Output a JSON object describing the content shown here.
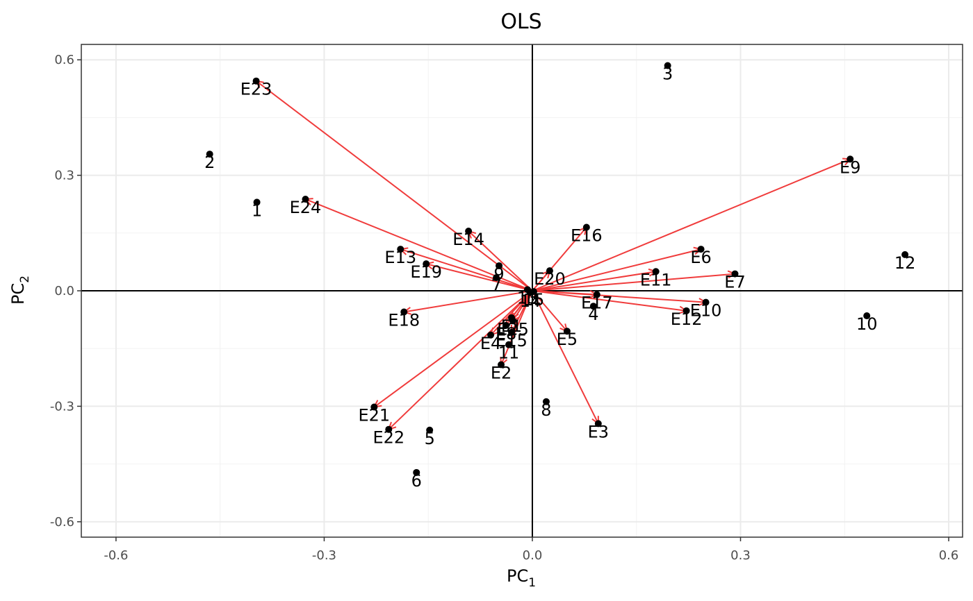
{
  "chart_data": {
    "type": "scatter",
    "title": "OLS",
    "xlabel": {
      "main": "PC",
      "sub": "1"
    },
    "ylabel": {
      "main": "PC",
      "sub": "2"
    },
    "xlim": [
      -0.65,
      0.62
    ],
    "ylim": [
      -0.64,
      0.64
    ],
    "xticks": [
      -0.6,
      -0.3,
      0.0,
      0.3,
      0.6
    ],
    "xtick_labels": [
      "-0.6",
      "-0.3",
      "0.0",
      "0.3",
      "0.6"
    ],
    "yticks": [
      -0.6,
      -0.3,
      0.0,
      0.3,
      0.6
    ],
    "yticks_labels": [
      "-0.6",
      "-0.3",
      "0.0",
      "0.3",
      "0.6"
    ],
    "grid": true,
    "arrow_color": "#f03b3b",
    "point_color": "#000000",
    "points": [
      {
        "label": "1",
        "x": -0.397,
        "y": 0.23
      },
      {
        "label": "2",
        "x": -0.465,
        "y": 0.355
      },
      {
        "label": "3",
        "x": 0.195,
        "y": 0.585
      },
      {
        "label": "4",
        "x": 0.088,
        "y": -0.04
      },
      {
        "label": "5",
        "x": -0.148,
        "y": -0.362
      },
      {
        "label": "6",
        "x": -0.167,
        "y": -0.472
      },
      {
        "label": "7",
        "x": -0.052,
        "y": 0.034
      },
      {
        "label": "8",
        "x": 0.02,
        "y": -0.288
      },
      {
        "label": "9",
        "x": -0.048,
        "y": 0.065
      },
      {
        "label": "10",
        "x": 0.482,
        "y": -0.065
      },
      {
        "label": "11",
        "x": -0.034,
        "y": -0.14
      },
      {
        "label": "12",
        "x": 0.537,
        "y": 0.094
      },
      {
        "label": "13",
        "x": -0.007,
        "y": 0.003
      },
      {
        "label": "14",
        "x": -0.003,
        "y": -0.005
      },
      {
        "label": "15",
        "x": 0.002,
        "y": -0.002
      }
    ],
    "vectors": [
      {
        "label": "E1",
        "x": -0.03,
        "y": -0.07
      },
      {
        "label": "E2",
        "x": -0.045,
        "y": -0.192
      },
      {
        "label": "E3",
        "x": 0.095,
        "y": -0.345
      },
      {
        "label": "E4",
        "x": -0.06,
        "y": -0.115
      },
      {
        "label": "E5",
        "x": 0.05,
        "y": -0.105
      },
      {
        "label": "E6",
        "x": 0.243,
        "y": 0.108
      },
      {
        "label": "E7",
        "x": 0.292,
        "y": 0.044
      },
      {
        "label": "E8",
        "x": -0.038,
        "y": -0.09
      },
      {
        "label": "E9",
        "x": 0.458,
        "y": 0.342
      },
      {
        "label": "E10",
        "x": 0.25,
        "y": -0.03
      },
      {
        "label": "E11",
        "x": 0.178,
        "y": 0.05
      },
      {
        "label": "E12",
        "x": 0.222,
        "y": -0.052
      },
      {
        "label": "E13",
        "x": -0.19,
        "y": 0.108
      },
      {
        "label": "E14",
        "x": -0.092,
        "y": 0.155
      },
      {
        "label": "E15",
        "x": -0.03,
        "y": -0.108
      },
      {
        "label": "E16",
        "x": 0.078,
        "y": 0.165
      },
      {
        "label": "E17",
        "x": 0.093,
        "y": -0.01
      },
      {
        "label": "E18",
        "x": -0.185,
        "y": -0.055
      },
      {
        "label": "E19",
        "x": -0.153,
        "y": 0.07
      },
      {
        "label": "E20",
        "x": 0.025,
        "y": 0.052
      },
      {
        "label": "E21",
        "x": -0.228,
        "y": -0.302
      },
      {
        "label": "E22",
        "x": -0.207,
        "y": -0.36
      },
      {
        "label": "E23",
        "x": -0.398,
        "y": 0.545
      },
      {
        "label": "E24",
        "x": -0.327,
        "y": 0.238
      },
      {
        "label": "E25",
        "x": -0.028,
        "y": -0.078
      }
    ]
  }
}
